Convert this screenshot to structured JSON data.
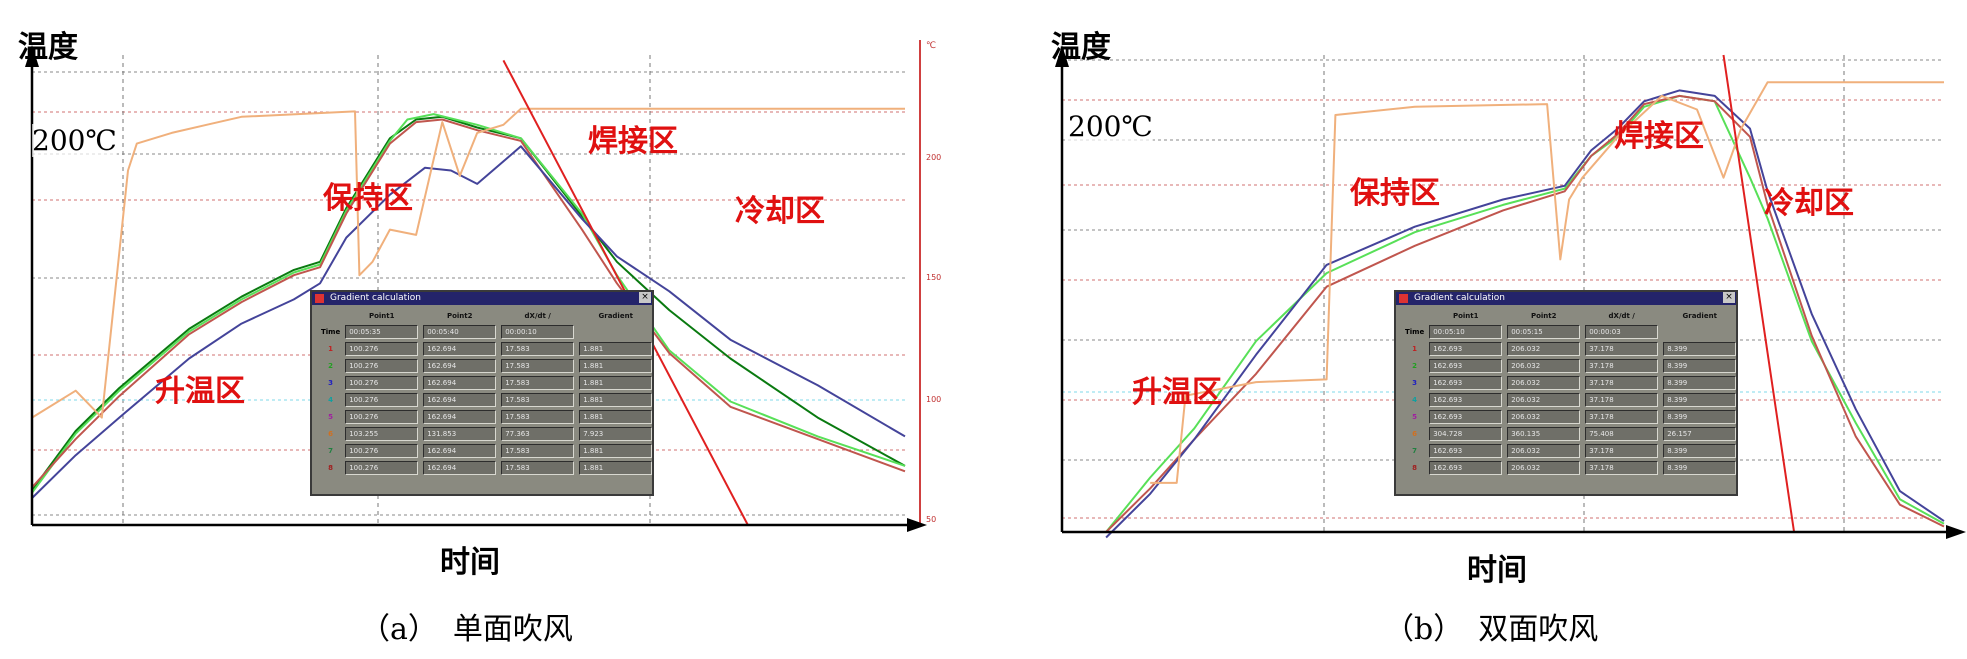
{
  "chart_data": [
    {
      "type": "line",
      "xlabel": "时间",
      "ylabel": "温度",
      "caption": "（a）　单面吹风",
      "temperature_marker": "200℃",
      "zones": [
        "升温区",
        "保持区",
        "焊接区",
        "冷却区"
      ],
      "right_axis_unit": "℃",
      "right_axis_ticks": [
        "200",
        "150",
        "100",
        "50"
      ],
      "dialog": {
        "title": "Gradient calculation",
        "headers": [
          "Point1",
          "Point2",
          "dX/dt /",
          "Gradient"
        ],
        "time_row": {
          "label": "Time",
          "values": [
            "00:05:35",
            "00:05:40",
            "00:00:10"
          ]
        },
        "rows": [
          {
            "n": "1",
            "values": [
              "100.276",
              "162.694",
              "17.583",
              "1.881"
            ]
          },
          {
            "n": "2",
            "values": [
              "100.276",
              "162.694",
              "17.583",
              "1.881"
            ]
          },
          {
            "n": "3",
            "values": [
              "100.276",
              "162.694",
              "17.583",
              "1.881"
            ]
          },
          {
            "n": "4",
            "values": [
              "100.276",
              "162.694",
              "17.583",
              "1.881"
            ]
          },
          {
            "n": "5",
            "values": [
              "100.276",
              "162.694",
              "17.583",
              "1.881"
            ]
          },
          {
            "n": "6",
            "values": [
              "103.255",
              "131.853",
              "77.363",
              "7.923"
            ]
          },
          {
            "n": "7",
            "values": [
              "100.276",
              "162.694",
              "17.583",
              "1.881"
            ]
          },
          {
            "n": "8",
            "values": [
              "100.276",
              "162.694",
              "17.583",
              "1.881"
            ]
          }
        ]
      },
      "series": [
        {
          "color": "#0a7a10",
          "values": [
            [
              0,
              53
            ],
            [
              5,
              75
            ],
            [
              10,
              91
            ],
            [
              18,
              113
            ],
            [
              24,
              125
            ],
            [
              30,
              135
            ],
            [
              33,
              138
            ],
            [
              36,
              158
            ],
            [
              41,
              184
            ],
            [
              44,
              191
            ],
            [
              47,
              192
            ],
            [
              51,
              188
            ],
            [
              56,
              184
            ],
            [
              63,
              155
            ],
            [
              67,
              138
            ],
            [
              73,
              120
            ],
            [
              80,
              102
            ],
            [
              90,
              80
            ],
            [
              100,
              62
            ]
          ]
        },
        {
          "color": "#58e058",
          "values": [
            [
              0,
              52
            ],
            [
              5,
              74
            ],
            [
              10,
              90
            ],
            [
              18,
              112
            ],
            [
              24,
              124
            ],
            [
              30,
              134
            ],
            [
              33,
              137
            ],
            [
              36,
              157
            ],
            [
              41,
              183
            ],
            [
              43,
              191
            ],
            [
              46,
              193
            ],
            [
              51,
              189
            ],
            [
              56,
              184
            ],
            [
              63,
              156
            ],
            [
              67,
              133
            ],
            [
              73,
              105
            ],
            [
              80,
              86
            ],
            [
              90,
              73
            ],
            [
              100,
              62
            ]
          ]
        },
        {
          "color": "#c0564e",
          "values": [
            [
              0,
              54
            ],
            [
              5,
              72
            ],
            [
              10,
              88
            ],
            [
              18,
              111
            ],
            [
              24,
              123
            ],
            [
              30,
              133
            ],
            [
              33,
              136
            ],
            [
              36,
              156
            ],
            [
              41,
              182
            ],
            [
              44,
              190
            ],
            [
              47,
              191
            ],
            [
              51,
              187
            ],
            [
              56,
              183
            ],
            [
              63,
              150
            ],
            [
              67,
              130
            ],
            [
              73,
              104
            ],
            [
              80,
              84
            ],
            [
              90,
              72
            ],
            [
              100,
              60
            ]
          ]
        },
        {
          "color": "#44449a",
          "values": [
            [
              0,
              50
            ],
            [
              5,
              66
            ],
            [
              10,
              80
            ],
            [
              18,
              102
            ],
            [
              24,
              115
            ],
            [
              30,
              124
            ],
            [
              33,
              130
            ],
            [
              36,
              147
            ],
            [
              41,
              163
            ],
            [
              45,
              173
            ],
            [
              48,
              172
            ],
            [
              51,
              167
            ],
            [
              56,
              181
            ],
            [
              63,
              154
            ],
            [
              67,
              140
            ],
            [
              73,
              127
            ],
            [
              80,
              109
            ],
            [
              90,
              92
            ],
            [
              100,
              73
            ]
          ]
        },
        {
          "color": "#f0b07c",
          "values": [
            [
              0,
              80
            ],
            [
              5,
              90
            ],
            [
              8,
              80
            ],
            [
              11,
              172
            ],
            [
              12,
              182
            ],
            [
              16,
              186
            ],
            [
              20,
              189
            ],
            [
              24,
              192
            ],
            [
              37,
              194
            ],
            [
              37.5,
              133
            ],
            [
              39,
              138
            ],
            [
              41,
              150
            ],
            [
              44,
              148
            ],
            [
              47,
              190
            ],
            [
              49,
              170
            ],
            [
              51,
              186
            ],
            [
              54,
              189
            ],
            [
              56,
              195
            ],
            [
              100,
              195
            ]
          ]
        }
      ],
      "tangent_line": {
        "color": "#e02020",
        "points": [
          [
            54,
            213
          ],
          [
            82,
            40
          ]
        ]
      },
      "ylim": [
        40,
        215
      ],
      "xlim": [
        0,
        100
      ]
    },
    {
      "type": "line",
      "xlabel": "时间",
      "ylabel": "温度",
      "caption": "（b）　双面吹风",
      "temperature_marker": "200℃",
      "zones": [
        "升温区",
        "保持区",
        "焊接区",
        "冷却区"
      ],
      "dialog": {
        "title": "Gradient calculation",
        "headers": [
          "Point1",
          "Point2",
          "dX/dt /",
          "Gradient"
        ],
        "time_row": {
          "label": "Time",
          "values": [
            "00:05:10",
            "00:05:15",
            "00:00:03"
          ]
        },
        "rows": [
          {
            "n": "1",
            "values": [
              "162.693",
              "206.032",
              "37.178",
              "8.399"
            ]
          },
          {
            "n": "2",
            "values": [
              "162.693",
              "206.032",
              "37.178",
              "8.399"
            ]
          },
          {
            "n": "3",
            "values": [
              "162.693",
              "206.032",
              "37.178",
              "8.399"
            ]
          },
          {
            "n": "4",
            "values": [
              "162.693",
              "206.032",
              "37.178",
              "8.399"
            ]
          },
          {
            "n": "5",
            "values": [
              "162.693",
              "206.032",
              "37.178",
              "8.399"
            ]
          },
          {
            "n": "6",
            "values": [
              "304.728",
              "360.135",
              "75.408",
              "26.157"
            ]
          },
          {
            "n": "7",
            "values": [
              "162.693",
              "206.032",
              "37.178",
              "8.399"
            ]
          },
          {
            "n": "8",
            "values": [
              "162.693",
              "206.032",
              "37.178",
              "8.399"
            ]
          }
        ]
      },
      "series": [
        {
          "color": "#58e058",
          "values": [
            [
              5,
              40
            ],
            [
              10,
              60
            ],
            [
              15,
              78
            ],
            [
              22,
              110
            ],
            [
              30,
              135
            ],
            [
              40,
              150
            ],
            [
              50,
              160
            ],
            [
              57,
              166
            ],
            [
              60,
              178
            ],
            [
              63,
              185
            ],
            [
              66,
              196
            ],
            [
              70,
              200
            ],
            [
              74,
              198
            ],
            [
              78,
              170
            ],
            [
              80,
              155
            ],
            [
              85,
              110
            ],
            [
              90,
              80
            ],
            [
              95,
              52
            ],
            [
              100,
              43
            ]
          ]
        },
        {
          "color": "#c0564e",
          "values": [
            [
              5,
              40
            ],
            [
              10,
              56
            ],
            [
              15,
              74
            ],
            [
              22,
              98
            ],
            [
              30,
              130
            ],
            [
              40,
              145
            ],
            [
              50,
              158
            ],
            [
              57,
              165
            ],
            [
              60,
              178
            ],
            [
              63,
              186
            ],
            [
              66,
              197
            ],
            [
              70,
              200
            ],
            [
              74,
              198
            ],
            [
              78,
              185
            ],
            [
              80,
              160
            ],
            [
              85,
              112
            ],
            [
              90,
              75
            ],
            [
              95,
              50
            ],
            [
              100,
              42
            ]
          ]
        },
        {
          "color": "#44449a",
          "values": [
            [
              5,
              38
            ],
            [
              10,
              54
            ],
            [
              15,
              74
            ],
            [
              22,
              105
            ],
            [
              30,
              138
            ],
            [
              40,
              152
            ],
            [
              50,
              162
            ],
            [
              57,
              167
            ],
            [
              60,
              180
            ],
            [
              63,
              188
            ],
            [
              66,
              198
            ],
            [
              70,
              202
            ],
            [
              74,
              200
            ],
            [
              78,
              188
            ],
            [
              80,
              165
            ],
            [
              85,
              120
            ],
            [
              90,
              85
            ],
            [
              95,
              55
            ],
            [
              100,
              44
            ]
          ]
        },
        {
          "color": "#f0b07c",
          "values": [
            [
              10,
              58
            ],
            [
              13,
              58
            ],
            [
              14,
              90
            ],
            [
              22,
              95
            ],
            [
              30,
              96
            ],
            [
              31,
              193
            ],
            [
              40,
              196
            ],
            [
              55,
              197
            ],
            [
              56.5,
              140
            ],
            [
              57.5,
              162
            ],
            [
              59,
              170
            ],
            [
              63,
              185
            ],
            [
              68,
              200
            ],
            [
              72,
              195
            ],
            [
              75,
              170
            ],
            [
              77,
              188
            ],
            [
              80,
              205
            ],
            [
              100,
              205
            ]
          ]
        }
      ],
      "tangent_line": {
        "color": "#e02020",
        "points": [
          [
            75,
            215
          ],
          [
            83,
            40
          ]
        ]
      },
      "ylim": [
        40,
        215
      ],
      "xlim": [
        0,
        100
      ]
    }
  ]
}
